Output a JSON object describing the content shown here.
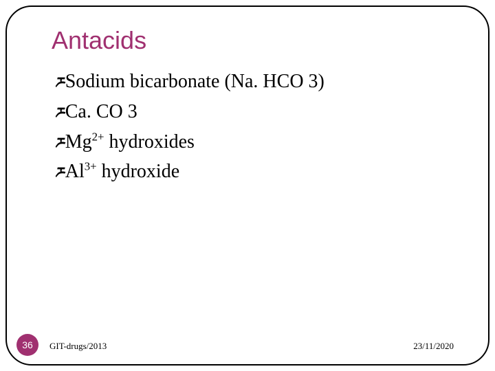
{
  "slide": {
    "title": "Antacids",
    "title_color": "#a03070",
    "title_fontsize": 36,
    "body_fontsize": 28,
    "body_font": "Times New Roman",
    "bullet_glyph": "ཬ",
    "bullets": [
      {
        "text": "Sodium bicarbonate (Na. HCO 3)"
      },
      {
        "text": "Ca. CO 3"
      },
      {
        "text": "Mg",
        "sup": "2+",
        "after": " hydroxides"
      },
      {
        "text": "Al",
        "sup": "3+",
        "after": " hydroxide"
      }
    ],
    "frame_color": "#000000",
    "frame_radius": 38,
    "background": "#ffffff",
    "page_number": "36",
    "badge_color": "#a03070",
    "footer_left": "GIT-drugs/2013",
    "footer_right": "23/11/2020"
  }
}
